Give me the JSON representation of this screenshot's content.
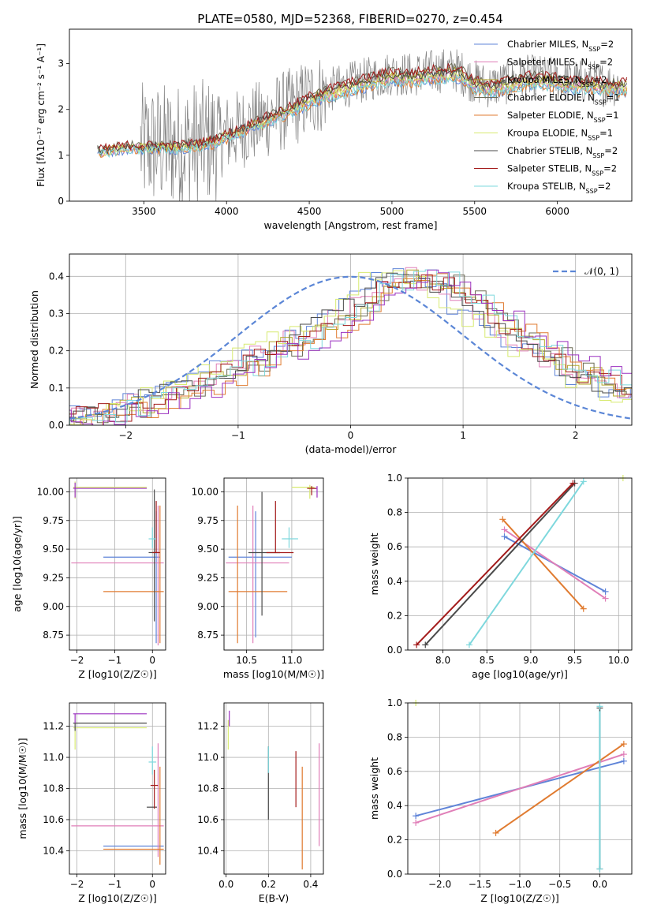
{
  "title": "PLATE=0580, MJD=52368, FIBERID=0270, z=0.454",
  "colors": {
    "chabrier_miles": "#5f84d8",
    "salpeter_miles": "#e07fb8",
    "kroupa_miles": "#b4a82c",
    "chabrier_elodie": "#6b6b55",
    "salpeter_elodie": "#e07b30",
    "kroupa_elodie": "#d7ea70",
    "chabrier_stelib": "#4a4a4a",
    "salpeter_stelib": "#a31a1a",
    "kroupa_stelib": "#7ed8dd",
    "data_spectrum": "#808080",
    "purple": "#9b30c0",
    "normal_curve": "#5b86d6"
  },
  "chart_data": [
    {
      "id": "spectrum",
      "type": "line",
      "xlabel": "wavelength [Angstrom, rest frame]",
      "ylabel": "Flux [f_λ10^-17 erg cm^-2 s^-1 A^-1]",
      "xlim": [
        3050,
        6450
      ],
      "ylim": [
        0,
        3.75
      ],
      "xticks": [
        3500,
        4000,
        4500,
        5000,
        5500,
        6000
      ],
      "yticks": [
        0,
        1,
        2,
        3
      ],
      "grid": false,
      "legend_position": "upper-right",
      "legend": [
        "Chabrier MILES, N_SSP=2",
        "Salpeter MILES, N_SSP=2",
        "Kroupa MILES, N_SSP=2",
        "Chabrier ELODIE, N_SSP=1",
        "Salpeter ELODIE, N_SSP=1",
        "Kroupa ELODIE, N_SSP=1",
        "Chabrier STELIB, N_SSP=2",
        "Salpeter STELIB, N_SSP=2",
        "Kroupa STELIB, N_SSP=2"
      ],
      "model_envelope": {
        "x": [
          3220,
          3300,
          3400,
          3500,
          3600,
          3700,
          3800,
          3900,
          4000,
          4100,
          4200,
          4300,
          4400,
          4500,
          4600,
          4700,
          4800,
          4900,
          5000,
          5100,
          5200,
          5300,
          5400,
          5500,
          5600,
          5700,
          5800,
          5900,
          6000,
          6100,
          6200,
          6300
        ],
        "y": [
          1.1,
          1.15,
          1.2,
          1.2,
          1.2,
          1.2,
          1.25,
          1.3,
          1.45,
          1.6,
          1.75,
          1.9,
          2.05,
          2.25,
          2.4,
          2.5,
          2.6,
          2.7,
          2.8,
          2.75,
          2.8,
          2.85,
          2.85,
          2.6,
          2.5,
          2.6,
          2.7,
          2.7,
          2.65,
          2.6,
          2.6,
          2.55
        ]
      }
    },
    {
      "id": "residuals",
      "type": "line",
      "xlabel": "(data-model)/error",
      "ylabel": "Normed distribution",
      "xlim": [
        -2.5,
        2.5
      ],
      "ylim": [
        0,
        0.46
      ],
      "xticks": [
        -2,
        -1,
        0,
        1,
        2
      ],
      "yticks": [
        0.0,
        0.1,
        0.2,
        0.3,
        0.4
      ],
      "grid": true,
      "legend_position": "upper-right",
      "legend": [
        "𝒩(0, 1)"
      ],
      "histogram_envelope": {
        "x": [
          -2.5,
          -2.0,
          -1.5,
          -1.0,
          -0.5,
          0.0,
          0.3,
          0.6,
          0.9,
          1.2,
          1.5,
          2.0,
          2.5
        ],
        "y": [
          0.02,
          0.04,
          0.09,
          0.15,
          0.22,
          0.3,
          0.38,
          0.4,
          0.38,
          0.3,
          0.24,
          0.15,
          0.09
        ]
      },
      "normal_pdf": {
        "mean": 0,
        "sigma": 1
      }
    },
    {
      "id": "age_vs_Z",
      "type": "scatter",
      "xlabel": "Z [log10(Z/Z☉)]",
      "ylabel": "age [log10(age/yr)]",
      "xlim": [
        -2.2,
        0.35
      ],
      "ylim": [
        8.62,
        10.12
      ],
      "xticks": [
        -2,
        -1,
        0
      ],
      "yticks": [
        8.75,
        9.0,
        9.25,
        9.5,
        9.75,
        10.0
      ],
      "grid": true,
      "points": [
        {
          "x": 0.1,
          "y": 9.43,
          "xerr": [
            1.4,
            0.1
          ],
          "yerr": [
            0.75,
            0.4
          ],
          "series": "Chabrier MILES"
        },
        {
          "x": 0.15,
          "y": 9.38,
          "xerr": [
            2.3,
            0.15
          ],
          "yerr": [
            0.72,
            0.5
          ],
          "series": "Salpeter MILES"
        },
        {
          "x": 0.2,
          "y": 9.13,
          "xerr": [
            1.5,
            0.1
          ],
          "yerr": [
            0.45,
            0.75
          ],
          "series": "Salpeter ELODIE"
        },
        {
          "x": 0.05,
          "y": 9.47,
          "xerr": [
            0.15,
            0.12
          ],
          "yerr": [
            0.6,
            0.55
          ],
          "series": "Chabrier STELIB"
        },
        {
          "x": 0.1,
          "y": 9.47,
          "xerr": [
            0.1,
            0.1
          ],
          "yerr": [
            0.0,
            0.45
          ],
          "series": "Salpeter STELIB"
        },
        {
          "x": 0.0,
          "y": 9.59,
          "xerr": [
            0.1,
            0.1
          ],
          "yerr": [
            0.08,
            0.1
          ],
          "series": "Kroupa STELIB"
        },
        {
          "x": -2.05,
          "y": 10.04,
          "xerr": [
            0.05,
            1.9
          ],
          "yerr": [
            0.1,
            0.05
          ],
          "series": "Kroupa ELODIE"
        },
        {
          "x": -2.05,
          "y": 10.03,
          "xerr": [
            0.05,
            1.9
          ],
          "yerr": [
            0.08,
            0.05
          ],
          "series": "purple"
        }
      ]
    },
    {
      "id": "age_vs_mass",
      "type": "scatter",
      "xlabel": "mass [log10(M/M☉)]",
      "ylabel": "",
      "xlim": [
        10.25,
        11.35
      ],
      "ylim": [
        8.62,
        10.12
      ],
      "xticks": [
        10.5,
        11.0
      ],
      "yticks": [
        8.75,
        9.0,
        9.25,
        9.5,
        9.75,
        10.0
      ],
      "grid": true,
      "points": [
        {
          "x": 10.6,
          "y": 9.43,
          "xerr": [
            0.3,
            0.4
          ],
          "yerr": [
            0.7,
            0.4
          ],
          "series": "Chabrier MILES"
        },
        {
          "x": 10.57,
          "y": 9.38,
          "xerr": [
            0.3,
            0.4
          ],
          "yerr": [
            0.7,
            0.5
          ],
          "series": "Salpeter MILES"
        },
        {
          "x": 10.4,
          "y": 9.13,
          "xerr": [
            0.1,
            0.55
          ],
          "yerr": [
            0.45,
            0.75
          ],
          "series": "Salpeter ELODIE"
        },
        {
          "x": 10.67,
          "y": 9.47,
          "xerr": [
            0.15,
            0.2
          ],
          "yerr": [
            0.55,
            0.53
          ],
          "series": "Chabrier STELIB"
        },
        {
          "x": 10.82,
          "y": 9.47,
          "xerr": [
            0.1,
            0.2
          ],
          "yerr": [
            0.0,
            0.45
          ],
          "series": "Salpeter STELIB"
        },
        {
          "x": 10.97,
          "y": 9.59,
          "xerr": [
            0.08,
            0.1
          ],
          "yerr": [
            0.08,
            0.1
          ],
          "series": "Kroupa STELIB"
        },
        {
          "x": 11.2,
          "y": 10.04,
          "xerr": [
            0.2,
            0.05
          ],
          "yerr": [
            0.1,
            0.02
          ],
          "series": "Kroupa ELODIE"
        },
        {
          "x": 11.28,
          "y": 10.03,
          "xerr": [
            0.05,
            0.0
          ],
          "yerr": [
            0.08,
            0.02
          ],
          "series": "purple"
        },
        {
          "x": 11.22,
          "y": 10.03,
          "xerr": [
            0.05,
            0.05
          ],
          "yerr": [
            0.06,
            0.02
          ],
          "series": "Salpeter STELIB"
        }
      ]
    },
    {
      "id": "weight_vs_age",
      "type": "line",
      "xlabel": "age [log10(age/yr)]",
      "ylabel": "mass weight",
      "xlim": [
        7.6,
        10.15
      ],
      "ylim": [
        0.0,
        1.0
      ],
      "xticks": [
        8.0,
        8.5,
        9.0,
        9.5,
        10.0
      ],
      "yticks": [
        0.0,
        0.2,
        0.4,
        0.6,
        0.8,
        1.0
      ],
      "grid": true,
      "series": [
        {
          "name": "Chabrier MILES",
          "x": [
            8.7,
            9.85
          ],
          "y": [
            0.66,
            0.34
          ]
        },
        {
          "name": "Salpeter MILES",
          "x": [
            8.7,
            9.85
          ],
          "y": [
            0.7,
            0.3
          ]
        },
        {
          "name": "Salpeter ELODIE",
          "x": [
            8.68,
            9.6
          ],
          "y": [
            0.76,
            0.24
          ]
        },
        {
          "name": "Chabrier STELIB",
          "x": [
            7.8,
            9.5
          ],
          "y": [
            0.03,
            0.97
          ]
        },
        {
          "name": "Salpeter STELIB",
          "x": [
            7.7,
            9.48
          ],
          "y": [
            0.03,
            0.97
          ]
        },
        {
          "name": "Kroupa STELIB",
          "x": [
            8.3,
            9.6
          ],
          "y": [
            0.03,
            0.98
          ]
        },
        {
          "name": "Kroupa ELODIE",
          "x": [
            10.05
          ],
          "y": [
            1.0
          ]
        }
      ]
    },
    {
      "id": "mass_vs_Z",
      "type": "scatter",
      "xlabel": "Z [log10(Z/Z☉)]",
      "ylabel": "mass [log10(M/M☉)]",
      "xlim": [
        -2.2,
        0.35
      ],
      "ylim": [
        10.25,
        11.35
      ],
      "xticks": [
        -2,
        -1,
        0
      ],
      "yticks": [
        10.4,
        10.6,
        10.8,
        11.0,
        11.2
      ],
      "grid": true,
      "points": [
        {
          "x": 0.1,
          "y": 10.43,
          "xerr": [
            1.4,
            0.2
          ],
          "yerr": [
            0.0,
            0.0
          ],
          "series": "Chabrier MILES"
        },
        {
          "x": 0.15,
          "y": 10.56,
          "xerr": [
            2.3,
            0.15
          ],
          "yerr": [
            0.2,
            0.53
          ],
          "series": "Salpeter MILES"
        },
        {
          "x": 0.2,
          "y": 10.41,
          "xerr": [
            1.5,
            0.1
          ],
          "yerr": [
            0.1,
            0.53
          ],
          "series": "Salpeter ELODIE"
        },
        {
          "x": 0.0,
          "y": 10.68,
          "xerr": [
            0.15,
            0.12
          ],
          "yerr": [
            0.0,
            0.0
          ],
          "series": "Chabrier STELIB"
        },
        {
          "x": 0.05,
          "y": 10.82,
          "xerr": [
            0.1,
            0.1
          ],
          "yerr": [
            0.15,
            0.1
          ],
          "series": "Salpeter STELIB"
        },
        {
          "x": 0.0,
          "y": 10.97,
          "xerr": [
            0.1,
            0.1
          ],
          "yerr": [
            0.08,
            0.1
          ],
          "series": "Kroupa STELIB"
        },
        {
          "x": -2.05,
          "y": 11.19,
          "xerr": [
            0.05,
            1.9
          ],
          "yerr": [
            0.14,
            0.0
          ],
          "series": "Kroupa ELODIE"
        },
        {
          "x": -2.05,
          "y": 11.22,
          "xerr": [
            0.05,
            1.9
          ],
          "yerr": [
            0.05,
            0.0
          ],
          "series": "Chabrier STELIB"
        },
        {
          "x": -2.05,
          "y": 11.28,
          "xerr": [
            0.05,
            1.9
          ],
          "yerr": [
            0.06,
            0.0
          ],
          "series": "purple"
        }
      ]
    },
    {
      "id": "mass_vs_ebv",
      "type": "scatter",
      "xlabel": "E(B-V)",
      "ylabel": "",
      "xlim": [
        -0.01,
        0.46
      ],
      "ylim": [
        10.25,
        11.35
      ],
      "xticks": [
        0.0,
        0.2,
        0.4
      ],
      "yticks": [
        10.4,
        10.6,
        10.8,
        11.0,
        11.2
      ],
      "grid": true,
      "points": [
        {
          "x": 0.2,
          "y": 10.8,
          "xerr": [
            0.0,
            0.0
          ],
          "yerr": [
            0.2,
            0.27
          ],
          "series": "Chabrier STELIB"
        },
        {
          "x": 0.2,
          "y": 11.0,
          "xerr": [
            0.0,
            0.0
          ],
          "yerr": [
            0.1,
            0.07
          ],
          "series": "Kroupa STELIB"
        },
        {
          "x": 0.33,
          "y": 10.86,
          "xerr": [
            0.0,
            0.0
          ],
          "yerr": [
            0.18,
            0.18
          ],
          "series": "Salpeter STELIB"
        },
        {
          "x": 0.36,
          "y": 10.6,
          "xerr": [
            0.0,
            0.0
          ],
          "yerr": [
            0.32,
            0.34
          ],
          "series": "Salpeter ELODIE"
        },
        {
          "x": 0.44,
          "y": 10.76,
          "xerr": [
            0.0,
            0.0
          ],
          "yerr": [
            0.33,
            0.33
          ],
          "series": "Salpeter MILES"
        },
        {
          "x": 0.01,
          "y": 11.19,
          "xerr": [
            0.0,
            0.0
          ],
          "yerr": [
            0.14,
            0.05
          ],
          "series": "Kroupa ELODIE"
        },
        {
          "x": 0.015,
          "y": 11.25,
          "xerr": [
            0.0,
            0.0
          ],
          "yerr": [
            0.05,
            0.05
          ],
          "series": "purple"
        }
      ]
    },
    {
      "id": "weight_vs_Z",
      "type": "line",
      "xlabel": "Z [log10(Z/Z☉)]",
      "ylabel": "mass weight",
      "xlim": [
        -2.4,
        0.4
      ],
      "ylim": [
        0.0,
        1.0
      ],
      "xticks": [
        -2.0,
        -1.5,
        -1.0,
        -0.5,
        0.0
      ],
      "yticks": [
        0.0,
        0.2,
        0.4,
        0.6,
        0.8,
        1.0
      ],
      "grid": true,
      "series": [
        {
          "name": "Chabrier MILES",
          "x": [
            -2.3,
            0.3
          ],
          "y": [
            0.34,
            0.66
          ]
        },
        {
          "name": "Salpeter MILES",
          "x": [
            -2.3,
            0.3
          ],
          "y": [
            0.3,
            0.7
          ]
        },
        {
          "name": "Salpeter ELODIE",
          "x": [
            -1.3,
            0.3
          ],
          "y": [
            0.24,
            0.76
          ]
        },
        {
          "name": "Chabrier STELIB",
          "x": [
            0.0,
            0.0
          ],
          "y": [
            0.03,
            0.97
          ]
        },
        {
          "name": "Kroupa STELIB",
          "x": [
            0.0,
            0.0
          ],
          "y": [
            0.03,
            0.98
          ]
        },
        {
          "name": "Kroupa ELODIE",
          "x": [
            -2.3
          ],
          "y": [
            1.0
          ]
        }
      ]
    }
  ]
}
